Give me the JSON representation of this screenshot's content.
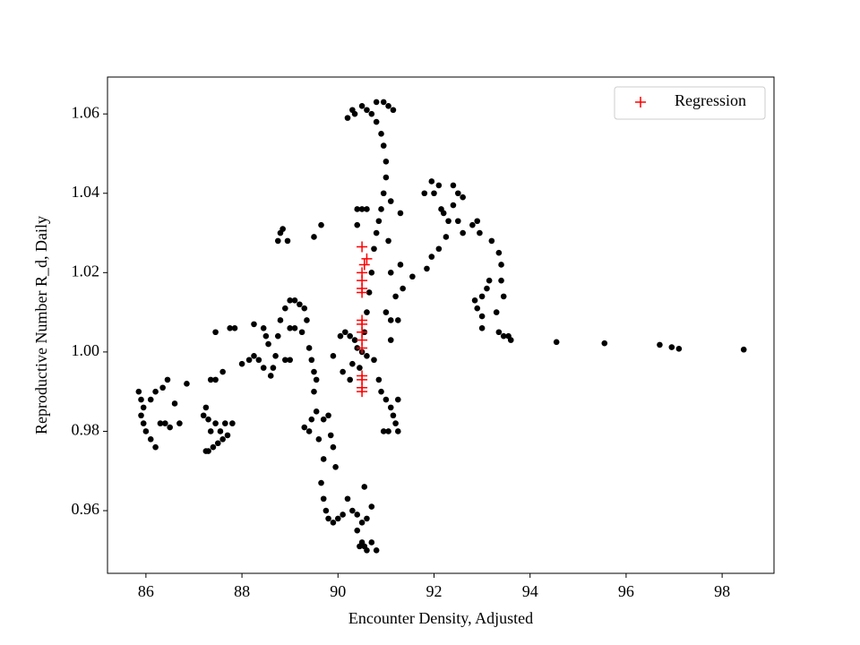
{
  "chart_data": {
    "type": "scatter",
    "xlabel": "Encounter Density, Adjusted",
    "ylabel": "Reproductive Number R_d, Daily",
    "xlim": [
      85.2,
      99.08
    ],
    "ylim": [
      0.9442,
      1.0693
    ],
    "xticks": [
      86,
      88,
      90,
      92,
      94,
      96,
      98
    ],
    "yticks": [
      0.96,
      0.98,
      {
        "value": 1,
        "label": "1.00"
      },
      1.02,
      1.04,
      1.06
    ],
    "legend": "upper right",
    "series": [
      {
        "color": "#000000",
        "marker": "dot",
        "x": [
          85.85,
          85.9,
          85.95,
          85.9,
          85.95,
          86.0,
          86.1,
          86.2,
          86.3,
          86.4,
          86.5,
          86.6,
          86.1,
          86.2,
          86.35,
          86.45,
          86.7,
          86.85,
          87.2,
          87.25,
          87.3,
          87.35,
          87.25,
          87.3,
          87.4,
          87.5,
          87.6,
          87.7,
          87.55,
          87.45,
          87.65,
          87.8,
          87.35,
          87.45,
          87.45,
          87.6,
          87.75,
          87.85,
          88.0,
          88.15,
          88.25,
          88.35,
          88.25,
          88.45,
          88.5,
          88.55,
          88.45,
          88.6,
          88.65,
          88.7,
          88.75,
          88.8,
          88.9,
          89.0,
          89.1,
          89.2,
          89.3,
          89.35,
          89.25,
          89.1,
          89.0,
          88.9,
          89.0,
          89.4,
          89.45,
          89.5,
          89.55,
          88.8,
          88.75,
          88.85,
          88.95,
          89.5,
          89.65,
          89.3,
          89.4,
          89.45,
          89.55,
          89.5,
          89.6,
          89.7,
          89.8,
          89.85,
          89.9,
          89.95,
          89.7,
          89.65,
          89.7,
          89.75,
          89.8,
          89.9,
          90.0,
          90.1,
          90.3,
          90.4,
          90.5,
          90.6,
          90.7,
          90.2,
          90.55,
          90.4,
          90.5,
          90.55,
          90.6,
          90.7,
          90.8,
          90.45,
          89.9,
          90.05,
          90.15,
          90.25,
          90.35,
          90.4,
          90.5,
          90.6,
          90.1,
          90.25,
          90.3,
          90.45,
          90.75,
          90.85,
          90.9,
          91.0,
          91.1,
          91.15,
          91.2,
          91.25,
          91.05,
          90.95,
          91.25,
          90.55,
          90.6,
          90.65,
          90.7,
          90.75,
          90.8,
          90.85,
          90.9,
          90.95,
          91.0,
          91.0,
          90.95,
          90.9,
          90.8,
          90.7,
          90.6,
          90.5,
          90.35,
          90.2,
          90.3,
          90.8,
          90.95,
          91.05,
          91.15,
          90.4,
          90.4,
          90.5,
          90.6,
          91.1,
          91.3,
          91.05,
          91.1,
          91.2,
          91.0,
          91.1,
          91.1,
          91.25,
          91.35,
          91.3,
          91.55,
          91.8,
          91.95,
          92.0,
          92.1,
          92.15,
          92.2,
          92.3,
          92.25,
          92.1,
          91.95,
          91.85,
          92.4,
          92.5,
          92.6,
          92.4,
          92.5,
          92.6,
          92.8,
          92.9,
          92.95,
          92.85,
          92.9,
          93.0,
          93.1,
          93.15,
          93.0,
          93.0,
          93.2,
          93.35,
          93.4,
          93.4,
          93.45,
          93.3,
          93.35,
          93.45,
          93.6,
          93.55,
          94.55,
          95.55,
          96.7,
          96.95,
          97.1,
          98.45
        ],
        "values": [
          0.99,
          0.988,
          0.986,
          0.984,
          0.982,
          0.98,
          0.978,
          0.976,
          0.982,
          0.982,
          0.981,
          0.987,
          0.988,
          0.99,
          0.991,
          0.993,
          0.982,
          0.992,
          0.984,
          0.986,
          0.983,
          0.98,
          0.975,
          0.975,
          0.976,
          0.977,
          0.978,
          0.979,
          0.98,
          0.982,
          0.982,
          0.982,
          0.993,
          0.993,
          1.005,
          0.995,
          1.006,
          1.006,
          0.997,
          0.998,
          0.999,
          0.998,
          1.007,
          1.006,
          1.004,
          1.002,
          0.996,
          0.994,
          0.996,
          0.999,
          1.004,
          1.008,
          1.011,
          1.013,
          1.013,
          1.012,
          1.011,
          1.008,
          1.005,
          1.006,
          1.006,
          0.998,
          0.998,
          1.001,
          0.998,
          0.995,
          0.993,
          1.03,
          1.028,
          1.031,
          1.028,
          1.029,
          1.032,
          0.981,
          0.98,
          0.983,
          0.985,
          0.99,
          0.978,
          0.983,
          0.984,
          0.979,
          0.976,
          0.971,
          0.973,
          0.967,
          0.963,
          0.96,
          0.958,
          0.957,
          0.958,
          0.959,
          0.96,
          0.959,
          0.957,
          0.958,
          0.961,
          0.963,
          0.966,
          0.955,
          0.952,
          0.951,
          0.95,
          0.952,
          0.95,
          0.951,
          0.999,
          1.004,
          1.005,
          1.004,
          1.003,
          1.001,
          1.0,
          0.999,
          0.995,
          0.993,
          0.997,
          0.996,
          0.998,
          0.993,
          0.99,
          0.988,
          0.986,
          0.984,
          0.982,
          0.98,
          0.98,
          0.98,
          0.988,
          1.005,
          1.01,
          1.015,
          1.02,
          1.026,
          1.03,
          1.033,
          1.036,
          1.04,
          1.044,
          1.048,
          1.052,
          1.055,
          1.058,
          1.06,
          1.061,
          1.062,
          1.06,
          1.059,
          1.061,
          1.063,
          1.063,
          1.062,
          1.061,
          1.032,
          1.036,
          1.036,
          1.036,
          1.038,
          1.035,
          1.028,
          1.02,
          1.014,
          1.01,
          1.003,
          1.008,
          1.008,
          1.016,
          1.022,
          1.019,
          1.04,
          1.043,
          1.04,
          1.042,
          1.036,
          1.035,
          1.033,
          1.029,
          1.026,
          1.024,
          1.021,
          1.042,
          1.04,
          1.039,
          1.037,
          1.033,
          1.03,
          1.032,
          1.033,
          1.03,
          1.013,
          1.011,
          1.014,
          1.016,
          1.018,
          1.009,
          1.006,
          1.028,
          1.025,
          1.022,
          1.018,
          1.014,
          1.01,
          1.005,
          1.004,
          1.003,
          1.004,
          1.0025,
          1.0022,
          1.0018,
          1.0012,
          1.0008,
          1.0006
        ]
      },
      {
        "name": "Regression",
        "color": "#ff0000",
        "marker": "plus",
        "x": [
          90.5,
          90.6,
          90.55,
          90.5,
          90.5,
          90.5,
          90.5,
          90.5,
          90.5,
          90.5,
          90.5,
          90.5,
          90.5,
          90.5,
          90.5,
          90.5
        ],
        "values": [
          1.0265,
          1.0235,
          1.022,
          1.02,
          1.018,
          1.016,
          1.015,
          1.008,
          1.007,
          1.005,
          1.003,
          1.001,
          0.994,
          0.993,
          0.991,
          0.99
        ]
      }
    ]
  }
}
